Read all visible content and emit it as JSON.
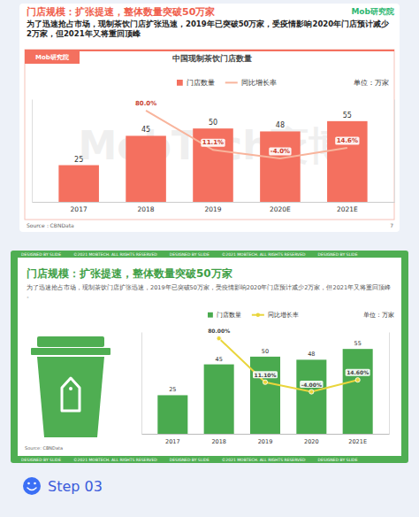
{
  "chart_data": [
    {
      "type": "bar",
      "slide_title": "门店规模：扩张提速，整体数量突破50万家",
      "brand": "Mob研究院",
      "subtitle": "为了迅速抢占市场，现制茶饮门店扩张迅速，2019年已突破50万家，受疫情影响2020年门店预计减少2万家，但2021年又将重回顶峰",
      "title": "中国现制茶饮门店数量",
      "watermark": "MobTech袤博",
      "unit": "单位：万家",
      "source": "Source：CBNData",
      "page": "7",
      "categories": [
        "2017",
        "2018",
        "2019",
        "2020E",
        "2021E"
      ],
      "series": [
        {
          "name": "门店数量",
          "type": "bar",
          "color": "#f4705f",
          "values": [
            25,
            45,
            50,
            48,
            55
          ]
        },
        {
          "name": "同比增长率",
          "type": "line",
          "color": "#f8b49c",
          "axis": "y2",
          "values": [
            null,
            80.0,
            11.1,
            -4.0,
            14.6
          ],
          "value_labels": [
            null,
            "80.0%",
            "11.1%",
            "-4.0%",
            "14.6%"
          ]
        }
      ],
      "ylim": [
        0,
        70
      ],
      "y2lim": [
        -80,
        100
      ],
      "tick_labels": "x",
      "data_labels": true,
      "legend": "top"
    },
    {
      "type": "bar",
      "slide_title": "门店规模：扩张提速，整体数量突破50万家",
      "subtitle": "为了迅速抢占市场，现制茶饮门店扩张迅速，2019年已突破50万家，受疫情影响2020年门店预计减少2万家，但2021年又将重回顶峰。",
      "unit": "单位：万家",
      "source": "Source: CBNData",
      "categories": [
        "2017",
        "2018",
        "2019",
        "2020",
        "2021E"
      ],
      "series": [
        {
          "name": "门店数量",
          "type": "bar",
          "color": "#4aaa4f",
          "values": [
            25,
            45,
            50,
            48,
            55
          ]
        },
        {
          "name": "同比增长率",
          "type": "line",
          "color": "#e9d53c",
          "axis": "y2",
          "marker": "circle",
          "values": [
            null,
            80.0,
            11.1,
            -4.0,
            14.6
          ],
          "value_labels": [
            null,
            "80.00%",
            "11.10%",
            "-4.00%",
            "14.60%"
          ]
        }
      ],
      "ylim": [
        0,
        66
      ],
      "y2lim": [
        -70,
        90
      ],
      "tick_labels": "x",
      "data_labels": true,
      "legend": "top"
    }
  ],
  "frame": {
    "credit": "DESIGNED BY SLIDE",
    "copyright": "©2021 MOBTECH. ALL RIGHTS RESERVED"
  },
  "step": "Step 03"
}
